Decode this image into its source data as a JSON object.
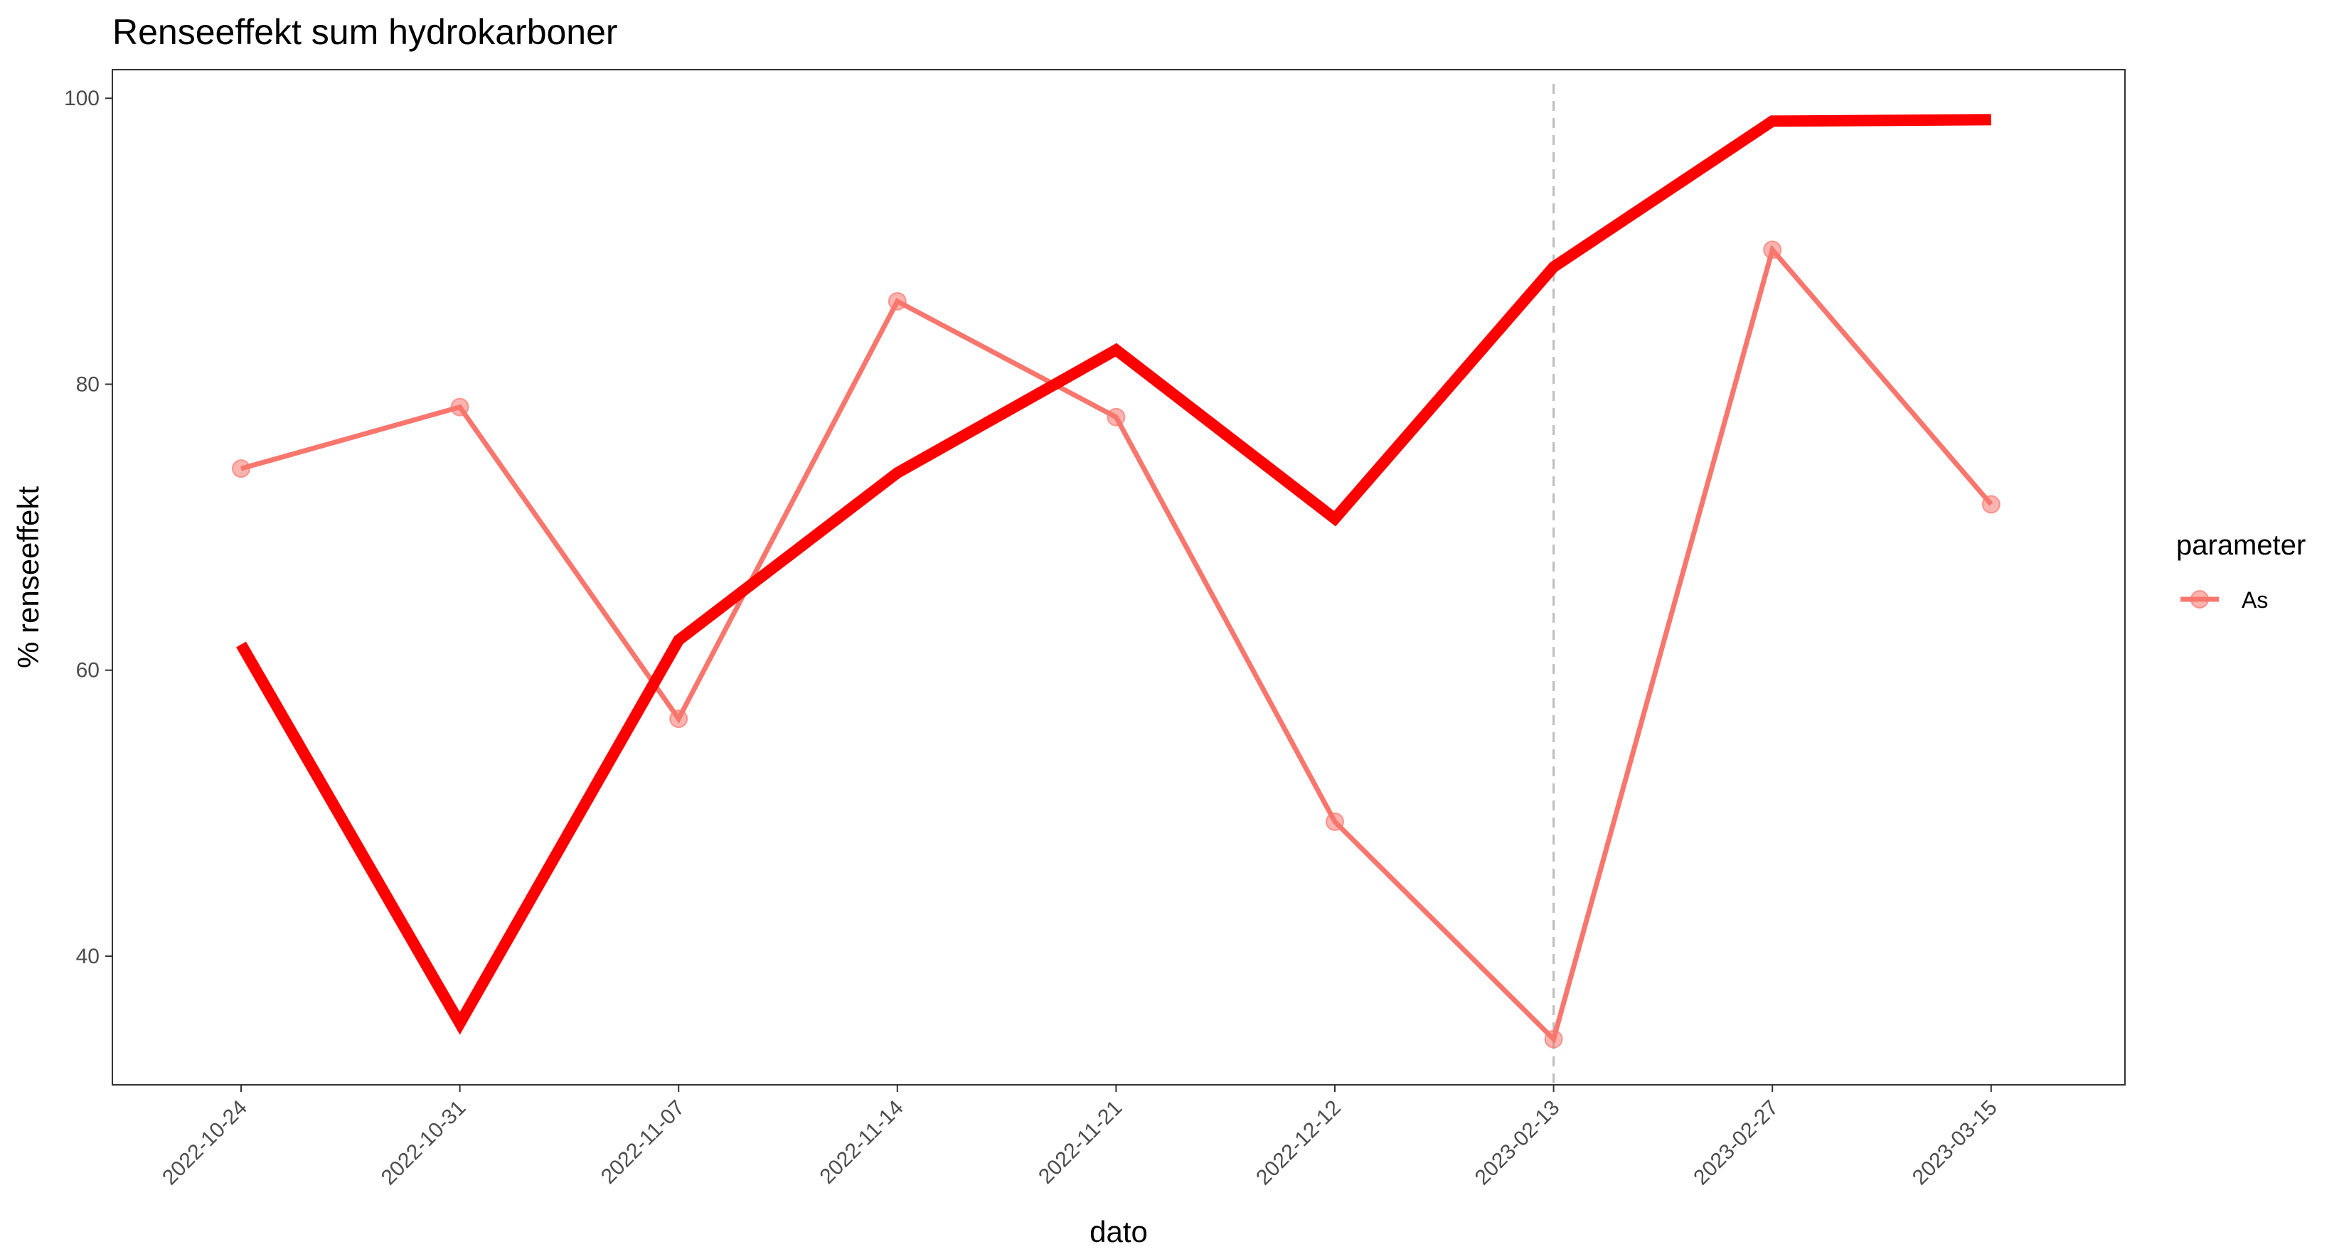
{
  "chart_data": {
    "type": "line",
    "title": "Renseeffekt sum hydrokarboner",
    "xlabel": "dato",
    "ylabel": "% renseeffekt",
    "categories": [
      "2022-10-24",
      "2022-10-31",
      "2022-11-07",
      "2022-11-14",
      "2022-11-21",
      "2022-12-12",
      "2023-02-13",
      "2023-02-27",
      "2023-03-15"
    ],
    "ylim": [
      31,
      102
    ],
    "yticks": [
      40,
      60,
      80,
      100
    ],
    "grid": false,
    "reference_line": {
      "x": "2023-02-13",
      "style": "dashed",
      "color": "#bdbdbd"
    },
    "legend": {
      "title": "parameter",
      "position": "right"
    },
    "series": [
      {
        "name": "As",
        "color": "#f8766d",
        "markers": true,
        "values": [
          74.1,
          78.4,
          56.6,
          85.8,
          77.7,
          49.4,
          34.2,
          89.4,
          71.6
        ]
      },
      {
        "color": "#ff0000",
        "markers": false,
        "emphasis": "thick",
        "values": [
          61.8,
          35.3,
          62.1,
          73.8,
          82.4,
          70.6,
          88.2,
          98.4,
          98.5
        ]
      }
    ]
  }
}
